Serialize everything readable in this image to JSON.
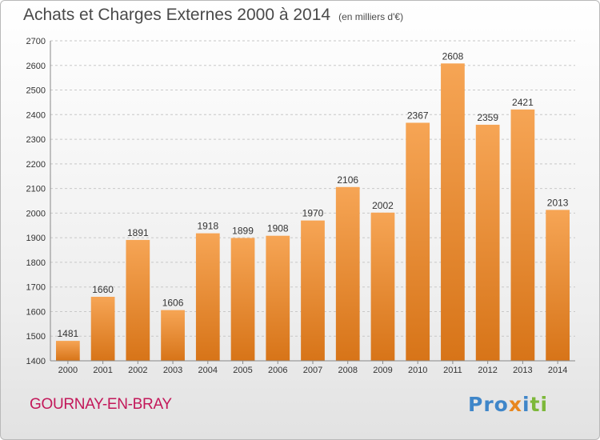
{
  "header": {
    "title": "Achats et Charges Externes 2000 à 2014",
    "unit": "(en milliers d'€)"
  },
  "footer": {
    "place": "GOURNAY-EN-BRAY",
    "logo": {
      "p1": "Pro",
      "p2": "x",
      "p3": "i",
      "p4": "ti"
    }
  },
  "colors": {
    "bar_top": "#f6a555",
    "bar_bottom": "#d77418",
    "title": "#4a4a4a",
    "place": "#c3185a"
  },
  "chart_data": {
    "type": "bar",
    "title": "Achats et Charges Externes 2000 à 2014",
    "subtitle": "(en milliers d'€)",
    "categories": [
      "2000",
      "2001",
      "2002",
      "2003",
      "2004",
      "2005",
      "2006",
      "2007",
      "2008",
      "2009",
      "2010",
      "2011",
      "2012",
      "2013",
      "2014"
    ],
    "values": [
      1481,
      1660,
      1891,
      1606,
      1918,
      1899,
      1908,
      1970,
      2106,
      2002,
      2367,
      2608,
      2359,
      2421,
      2013
    ],
    "ylim": [
      1400,
      2700
    ],
    "yticks": [
      1400,
      1500,
      1600,
      1700,
      1800,
      1900,
      2000,
      2100,
      2200,
      2300,
      2400,
      2500,
      2600,
      2700
    ],
    "grid": "dashed-horizontal",
    "legend": "none"
  }
}
